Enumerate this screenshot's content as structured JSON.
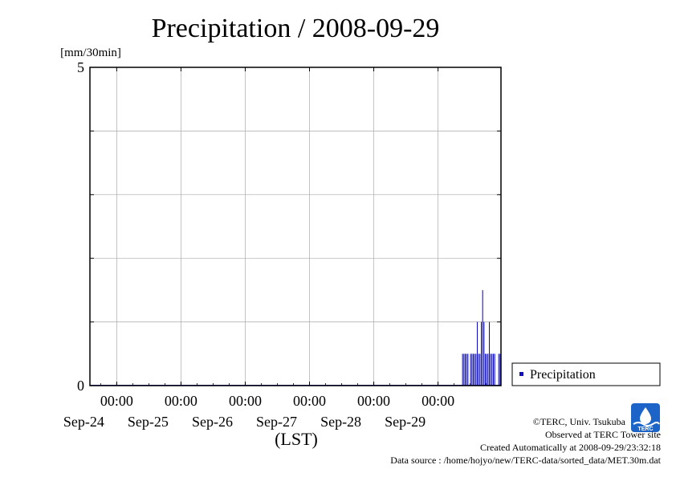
{
  "chart_data": {
    "type": "bar",
    "title": "Precipitation / 2008-09-29",
    "ylabel": "[mm/30min]",
    "xlabel": "(LST)",
    "ylim": [
      0,
      5
    ],
    "yticks": [
      0,
      5
    ],
    "ygrid": [
      0,
      1,
      2,
      3,
      4,
      5
    ],
    "xlim_days": [
      "2008-09-23 14:00",
      "2008-09-29 23:30"
    ],
    "xticks": [
      {
        "date": "2008-09-24",
        "time": "00:00",
        "label": "Sep-24"
      },
      {
        "date": "2008-09-25",
        "time": "00:00",
        "label": "Sep-25"
      },
      {
        "date": "2008-09-26",
        "time": "00:00",
        "label": "Sep-26"
      },
      {
        "date": "2008-09-27",
        "time": "00:00",
        "label": "Sep-27"
      },
      {
        "date": "2008-09-28",
        "time": "00:00",
        "label": "Sep-28"
      },
      {
        "date": "2008-09-29",
        "time": "00:00",
        "label": "Sep-29"
      }
    ],
    "grid": true,
    "legend_position": "right",
    "series": [
      {
        "name": "Precipitation",
        "color": "#1010c0",
        "x": [
          "2008-09-29 09:00",
          "2008-09-29 09:30",
          "2008-09-29 10:00",
          "2008-09-29 10:30",
          "2008-09-29 11:00",
          "2008-09-29 11:30",
          "2008-09-29 12:00",
          "2008-09-29 12:30",
          "2008-09-29 13:00",
          "2008-09-29 13:30",
          "2008-09-29 14:00",
          "2008-09-29 14:30",
          "2008-09-29 15:00",
          "2008-09-29 15:30",
          "2008-09-29 16:00",
          "2008-09-29 16:30",
          "2008-09-29 17:00",
          "2008-09-29 17:30",
          "2008-09-29 18:00",
          "2008-09-29 18:30",
          "2008-09-29 19:00",
          "2008-09-29 19:30",
          "2008-09-29 20:00",
          "2008-09-29 20:30",
          "2008-09-29 21:00",
          "2008-09-29 21:30",
          "2008-09-29 22:00",
          "2008-09-29 22:30",
          "2008-09-29 23:00"
        ],
        "values": [
          0.5,
          0.5,
          0.5,
          0.5,
          0.5,
          0,
          0.5,
          0.5,
          0.5,
          0.5,
          0.5,
          1.0,
          0.5,
          0.5,
          1.0,
          1.5,
          1.0,
          0.5,
          0.5,
          0.5,
          1.0,
          0.5,
          0.5,
          0.5,
          0.5,
          0,
          0,
          0.5,
          0.5
        ]
      }
    ]
  },
  "legend": {
    "label": "Precipitation"
  },
  "credits": {
    "line1": "©TERC, Univ. Tsukuba",
    "line2": "Observed at TERC Tower site",
    "line3": "Created Automatically at 2008-09-29/23:32:18",
    "line4": "Data source : /home/hojyo/new/TERC-data/sorted_data/MET.30m.dat"
  },
  "logo": {
    "icon": "terc-logo-icon",
    "text": "TERC",
    "color": "#1c64c8"
  }
}
